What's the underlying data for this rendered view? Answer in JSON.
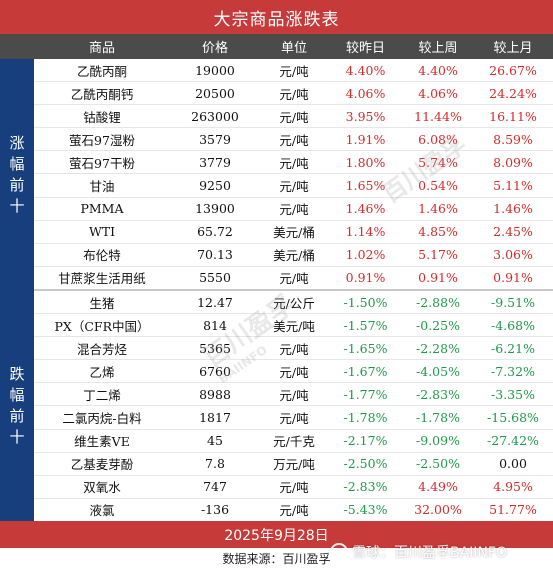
{
  "title": "大宗商品涨跌表",
  "headers": {
    "name": "商品",
    "price": "价格",
    "unit": "单位",
    "day": "较昨日",
    "week": "较上周",
    "month": "较上月"
  },
  "sections": {
    "top": "涨幅前十",
    "bottom": "跌幅前十"
  },
  "gainers": [
    {
      "name": "乙酰丙酮",
      "price": "19000",
      "unit": "元/吨",
      "day": "4.40%",
      "week": "4.40%",
      "month": "26.67%"
    },
    {
      "name": "乙酰丙酮钙",
      "price": "20500",
      "unit": "元/吨",
      "day": "4.06%",
      "week": "4.06%",
      "month": "24.24%"
    },
    {
      "name": "钴酸锂",
      "price": "263000",
      "unit": "元/吨",
      "day": "3.95%",
      "week": "11.44%",
      "month": "16.11%"
    },
    {
      "name": "萤石97湿粉",
      "price": "3579",
      "unit": "元/吨",
      "day": "1.91%",
      "week": "6.08%",
      "month": "8.59%"
    },
    {
      "name": "萤石97干粉",
      "price": "3779",
      "unit": "元/吨",
      "day": "1.80%",
      "week": "5.74%",
      "month": "8.09%"
    },
    {
      "name": "甘油",
      "price": "9250",
      "unit": "元/吨",
      "day": "1.65%",
      "week": "0.54%",
      "month": "5.11%"
    },
    {
      "name": "PMMA",
      "price": "13900",
      "unit": "元/吨",
      "day": "1.46%",
      "week": "1.46%",
      "month": "1.46%"
    },
    {
      "name": "WTI",
      "price": "65.72",
      "unit": "美元/桶",
      "day": "1.14%",
      "week": "4.85%",
      "month": "2.45%"
    },
    {
      "name": "布伦特",
      "price": "70.13",
      "unit": "美元/桶",
      "day": "1.02%",
      "week": "5.17%",
      "month": "3.06%"
    },
    {
      "name": "甘蔗浆生活用纸",
      "price": "5550",
      "unit": "元/吨",
      "day": "0.91%",
      "week": "0.91%",
      "month": "0.91%"
    }
  ],
  "losers": [
    {
      "name": "生猪",
      "price": "12.47",
      "unit": "元/公斤",
      "day": "-1.50%",
      "week": "-2.88%",
      "month": "-9.51%"
    },
    {
      "name": "PX（CFR中国）",
      "price": "814",
      "unit": "美元/吨",
      "day": "-1.57%",
      "week": "-0.25%",
      "month": "-4.68%"
    },
    {
      "name": "混合芳烃",
      "price": "5365",
      "unit": "元/吨",
      "day": "-1.65%",
      "week": "-2.28%",
      "month": "-6.21%"
    },
    {
      "name": "乙烯",
      "price": "6760",
      "unit": "元/吨",
      "day": "-1.67%",
      "week": "-4.05%",
      "month": "-7.32%"
    },
    {
      "name": "丁二烯",
      "price": "8988",
      "unit": "元/吨",
      "day": "-1.77%",
      "week": "-2.83%",
      "month": "-3.35%"
    },
    {
      "name": "二氯丙烷-白料",
      "price": "1817",
      "unit": "元/吨",
      "day": "-1.78%",
      "week": "-1.78%",
      "month": "-15.68%"
    },
    {
      "name": "维生素VE",
      "price": "45",
      "unit": "元/千克",
      "day": "-2.17%",
      "week": "-9.09%",
      "month": "-27.42%"
    },
    {
      "name": "乙基麦芽酚",
      "price": "7.8",
      "unit": "万元/吨",
      "day": "-2.50%",
      "week": "-2.50%",
      "month": "0.00"
    },
    {
      "name": "双氧水",
      "price": "747",
      "unit": "元/吨",
      "day": "-2.83%",
      "week": "4.49%",
      "month": "4.95%"
    },
    {
      "name": "液氯",
      "price": "-136",
      "unit": "元/吨",
      "day": "-5.43%",
      "week": "32.00%",
      "month": "51.77%"
    }
  ],
  "date": "2025年9月28日",
  "source": "数据来源：百川盈孚",
  "watermarks": {
    "cn": "百川盈孚",
    "en": "BAIINFO",
    "snowball": "雪球：百川盈孚BAIINFO"
  },
  "colors": {
    "title_bg": "#c63a3a",
    "header_bg": "#4b4b4b",
    "side_bg": "#173e7d",
    "up": "#d52b2b",
    "down": "#1f9a4a"
  }
}
